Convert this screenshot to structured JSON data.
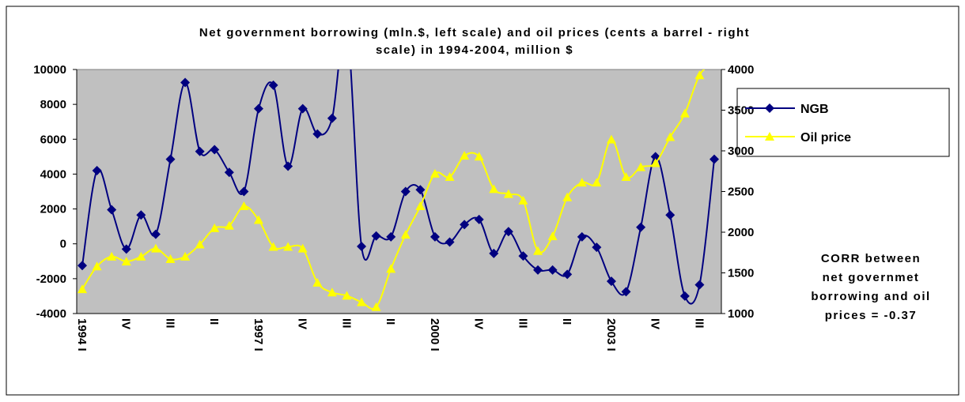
{
  "chart_data": {
    "type": "line",
    "title": [
      "Net government borrowing (mln.$, left scale) and oil prices (cents a barrel - right",
      "scale) in 1994-2004, million $"
    ],
    "categories": [
      "1994 I",
      null,
      null,
      "IV",
      null,
      null,
      "III",
      null,
      null,
      "II",
      null,
      null,
      "1997 I",
      null,
      null,
      "IV",
      null,
      null,
      "III",
      null,
      null,
      "II",
      null,
      null,
      "2000 I",
      null,
      null,
      "IV",
      null,
      null,
      "III",
      null,
      null,
      "II",
      null,
      null,
      "2003 I",
      null,
      null,
      "IV",
      null,
      null,
      "III",
      null
    ],
    "series": [
      {
        "name": "NGB",
        "color": "#000080",
        "marker": "diamond",
        "values": [
          -1250,
          4200,
          1950,
          -300,
          1650,
          550,
          4850,
          9250,
          5300,
          5400,
          4100,
          3000,
          7750,
          9100,
          4450,
          7750,
          6300,
          7200,
          12500,
          -150,
          450,
          400,
          3000,
          3100,
          400,
          100,
          1100,
          1400,
          -550,
          700,
          -700,
          -1500,
          -1500,
          -1750,
          400,
          -200,
          -2150,
          -2750,
          950,
          5000,
          1650,
          -3000,
          -2350,
          4850
        ]
      },
      {
        "name": "Oil price",
        "color": "#ffff00",
        "marker": "triangle",
        "axis": "y2",
        "values": [
          1300,
          1580,
          1700,
          1640,
          1700,
          1800,
          1670,
          1700,
          1850,
          2050,
          2080,
          2320,
          2150,
          1820,
          1820,
          1800,
          1380,
          1260,
          1220,
          1140,
          1080,
          1550,
          1970,
          2320,
          2720,
          2680,
          2940,
          2930,
          2530,
          2470,
          2390,
          1770,
          1950,
          2430,
          2610,
          2610,
          3140,
          2680,
          2800,
          2850,
          3170,
          3460,
          3930,
          4100
        ]
      }
    ],
    "ylim": [
      -4000,
      10000
    ],
    "yticks": [
      -4000,
      -2000,
      0,
      2000,
      4000,
      6000,
      8000,
      10000
    ],
    "y2lim": [
      1000,
      4000
    ],
    "y2ticks": [
      1000,
      1500,
      2000,
      2500,
      3000,
      3500,
      4000
    ],
    "legend": "right",
    "annotation": [
      "CORR between",
      "net governmet",
      "borrowing and oil",
      "prices = -0.37"
    ]
  }
}
